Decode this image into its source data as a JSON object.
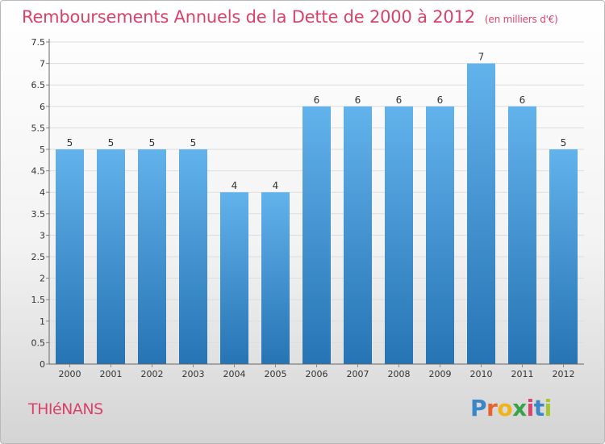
{
  "title": "Remboursements Annuels de la Dette de 2000 à 2012",
  "unit": "(en milliers d'€)",
  "commune": "THIéNANS",
  "logo": {
    "letters": [
      "P",
      "r",
      "o",
      "x",
      "i",
      "t",
      "i"
    ],
    "colors": [
      "#3b86c8",
      "#e8622f",
      "#f1b31c",
      "#3aa34a",
      "#d9436a",
      "#3b86c8",
      "#a5c62e"
    ]
  },
  "colors": {
    "bar_light": "#62b2ec",
    "bar_dark": "#2674b4",
    "title": "#d9436a"
  },
  "chart_data": {
    "type": "bar",
    "title": "Remboursements Annuels de la Dette de 2000 à 2012",
    "xlabel": "",
    "ylabel": "",
    "categories": [
      "2000",
      "2001",
      "2002",
      "2003",
      "2004",
      "2005",
      "2006",
      "2007",
      "2008",
      "2009",
      "2010",
      "2011",
      "2012"
    ],
    "values": [
      5,
      5,
      5,
      5,
      4,
      4,
      6,
      6,
      6,
      6,
      7,
      6,
      5
    ],
    "ylim": [
      0,
      7.5
    ],
    "yticks": [
      "0",
      "0.5",
      "1",
      "1.5",
      "2",
      "2.5",
      "3",
      "3.5",
      "4",
      "4.5",
      "5",
      "5.5",
      "6",
      "6.5",
      "7",
      "7.5"
    ],
    "grid": true
  }
}
